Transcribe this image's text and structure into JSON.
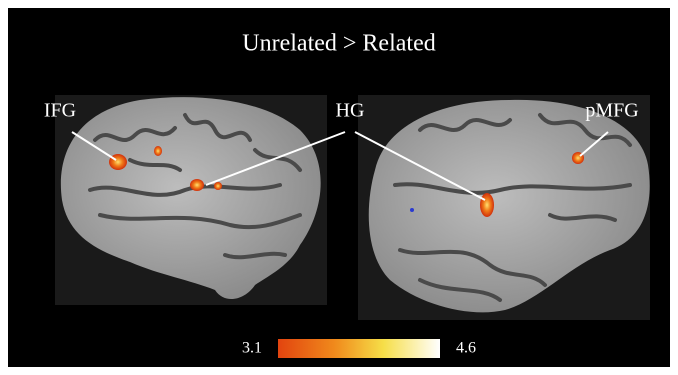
{
  "figure": {
    "title": "Unrelated > Related",
    "labels": [
      "IFG",
      "HG",
      "pMFG"
    ],
    "colorbar": {
      "min_label": "3.1",
      "max_label": "4.6"
    }
  }
}
